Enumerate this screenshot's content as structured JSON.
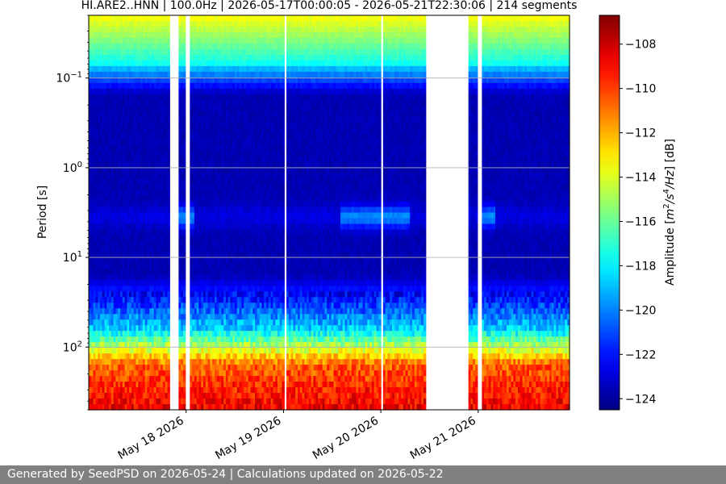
{
  "chart_data": {
    "type": "heatmap",
    "title": "HI.ARE2..HNN | 100.0Hz | 2026-05-17T00:00:05 - 2026-05-21T22:30:06 | 214 segments",
    "xlabel": "",
    "ylabel": "Period [s]",
    "x_range": [
      "2026-05-17T00:00:05",
      "2026-05-21T22:30:06"
    ],
    "x_tick_labels": [
      "May 18 2026",
      "May 19 2026",
      "May 20 2026",
      "May 21 2026"
    ],
    "x_tick_dates": [
      "2026-05-18",
      "2026-05-19",
      "2026-05-20",
      "2026-05-21"
    ],
    "y_scale": "log",
    "y_inverted": true,
    "y_range_s": [
      0.02,
      500
    ],
    "y_tick_labels": [
      "10^-1",
      "10^0",
      "10^1",
      "10^2"
    ],
    "y_tick_values": [
      0.1,
      1,
      10,
      100
    ],
    "grid": "horizontal lines at y ticks",
    "colorbar": {
      "label": "Amplitude [m^2/s^4/Hz] [dB]",
      "range": [
        -124.5,
        -106.7
      ],
      "tick_values": [
        -108,
        -110,
        -112,
        -114,
        -116,
        -118,
        -120,
        -122,
        -124
      ],
      "tick_labels": [
        "−108",
        "−110",
        "−112",
        "−114",
        "−116",
        "−118",
        "−120",
        "−122",
        "−124"
      ],
      "colormap": "jet"
    },
    "gaps": [
      {
        "start": "2026-05-17T19:50",
        "end": "2026-05-17T22:10"
      },
      {
        "start": "2026-05-18T00:00",
        "end": "2026-05-18T00:40"
      },
      {
        "start": "2026-05-19T00:00",
        "end": "2026-05-19T00:40"
      },
      {
        "start": "2026-05-20T00:00",
        "end": "2026-05-20T00:40"
      },
      {
        "start": "2026-05-20T11:20",
        "end": "2026-05-20T21:20"
      },
      {
        "start": "2026-05-20T23:50",
        "end": "2026-05-21T00:40"
      }
    ],
    "features": {
      "microseism_band_period_s": [
        2.5,
        5
      ],
      "microseism_strong_intervals": [
        {
          "start": "2026-05-17T22:00",
          "end": "2026-05-18T02:00"
        },
        {
          "start": "2026-05-19T14:00",
          "end": "2026-05-20T07:00"
        },
        {
          "start": "2026-05-21T00:00",
          "end": "2026-05-21T04:00"
        }
      ]
    }
  },
  "footer": {
    "text": "Generated by SeedPSD on 2026-05-24 | Calculations updated on 2026-05-22"
  }
}
